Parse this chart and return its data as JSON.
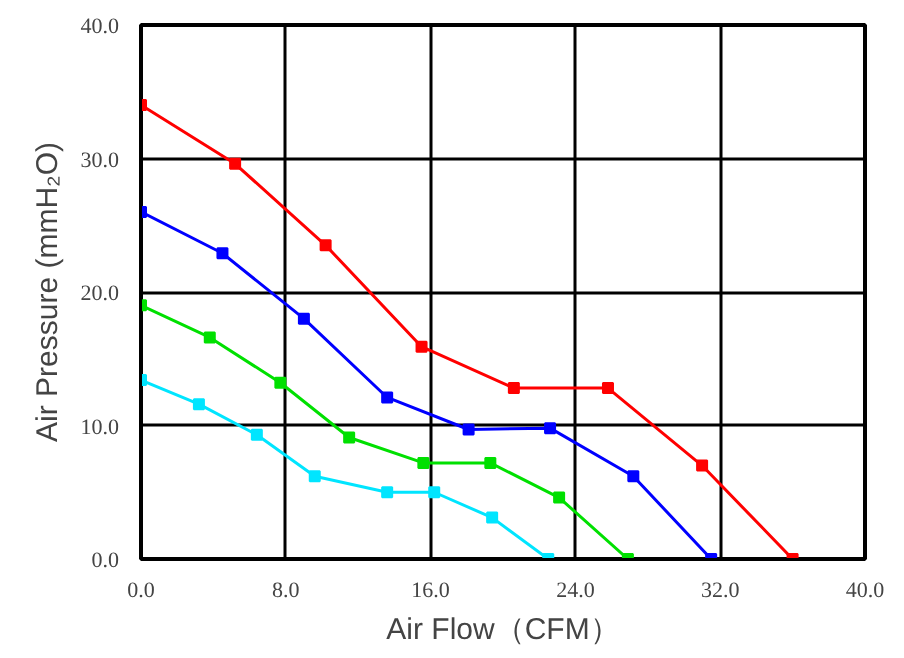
{
  "chart_data": {
    "type": "line",
    "xlabel": "Air Flow（CFM）",
    "ylabel": "Air Pressure (mmH₂O)",
    "xlim": [
      0,
      40
    ],
    "ylim": [
      0,
      40
    ],
    "xticks": [
      {
        "value": 0,
        "label": "0.0"
      },
      {
        "value": 8,
        "label": "8.0"
      },
      {
        "value": 16,
        "label": "16.0"
      },
      {
        "value": 24,
        "label": "24.0"
      },
      {
        "value": 32,
        "label": "32.0"
      },
      {
        "value": 40,
        "label": "40.0"
      }
    ],
    "yticks": [
      {
        "value": 0,
        "label": "0.0"
      },
      {
        "value": 10,
        "label": "10.0"
      },
      {
        "value": 20,
        "label": "20.0"
      },
      {
        "value": 30,
        "label": "30.0"
      },
      {
        "value": 40,
        "label": "40.0"
      }
    ],
    "grid": true,
    "marker": "square",
    "line_style": "solid",
    "series": [
      {
        "color": "#ff0000",
        "x": [
          0,
          5.2,
          10.2,
          15.5,
          20.6,
          25.8,
          31,
          36
        ],
        "values": [
          34,
          29.6,
          23.5,
          15.9,
          12.8,
          12.8,
          7,
          0
        ]
      },
      {
        "color": "#0000ff",
        "x": [
          0,
          4.5,
          9,
          13.6,
          18.1,
          22.6,
          27.2,
          31.5
        ],
        "values": [
          26,
          22.9,
          18,
          12.1,
          9.7,
          9.8,
          6.2,
          0
        ]
      },
      {
        "color": "#00e000",
        "x": [
          0,
          3.8,
          7.7,
          11.5,
          15.6,
          19.3,
          23.1,
          26.9
        ],
        "values": [
          19,
          16.6,
          13.2,
          9.1,
          7.2,
          7.2,
          4.6,
          0
        ]
      },
      {
        "color": "#00e5ff",
        "x": [
          0,
          3.2,
          6.4,
          9.6,
          13.6,
          16.2,
          19.4,
          22.5
        ],
        "values": [
          13.4,
          11.6,
          9.3,
          6.2,
          5,
          5,
          3.1,
          0
        ]
      }
    ]
  }
}
